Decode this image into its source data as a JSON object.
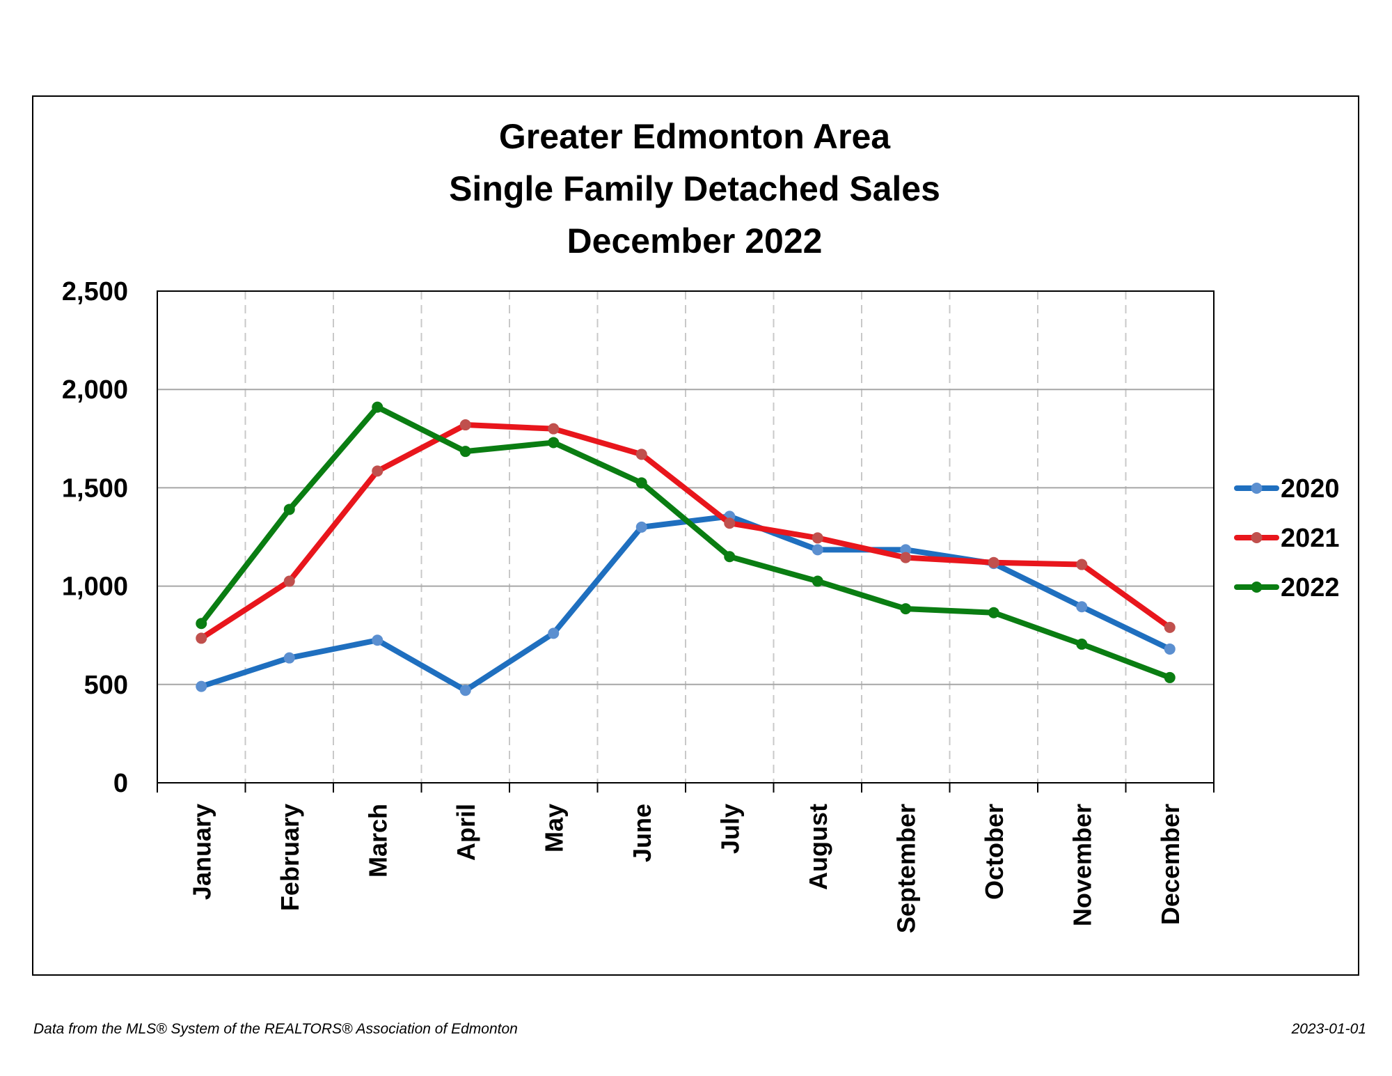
{
  "chart_data": {
    "type": "line",
    "title": [
      "Greater Edmonton Area",
      "Single Family Detached Sales",
      "December 2022"
    ],
    "categories": [
      "January",
      "February",
      "March",
      "April",
      "May",
      "June",
      "July",
      "August",
      "September",
      "October",
      "November",
      "December"
    ],
    "ylim": [
      0,
      2500
    ],
    "yticks": [
      0,
      500,
      1000,
      1500,
      2000,
      2500
    ],
    "ytick_labels": [
      "0",
      "500",
      "1,000",
      "1,500",
      "2,000",
      "2,500"
    ],
    "grid": {
      "horizontal": "solid",
      "vertical": "dashed"
    },
    "legend_position": "right",
    "series": [
      {
        "name": "2020",
        "color": "#1f6fbf",
        "marker_color": "#5b8fd0",
        "values": [
          490,
          635,
          725,
          470,
          760,
          1300,
          1355,
          1185,
          1185,
          1115,
          895,
          680
        ]
      },
      {
        "name": "2021",
        "color": "#e8161c",
        "marker_color": "#c0504d",
        "values": [
          735,
          1025,
          1585,
          1820,
          1800,
          1670,
          1320,
          1245,
          1145,
          1120,
          1110,
          790
        ]
      },
      {
        "name": "2022",
        "color": "#0a7d12",
        "marker_color": "#0a7d12",
        "values": [
          810,
          1390,
          1910,
          1685,
          1730,
          1525,
          1150,
          1025,
          885,
          865,
          705,
          535
        ]
      }
    ]
  },
  "footer": {
    "source": "Data from the MLS® System of the REALTORS® Association of Edmonton",
    "date": "2023-01-01"
  }
}
